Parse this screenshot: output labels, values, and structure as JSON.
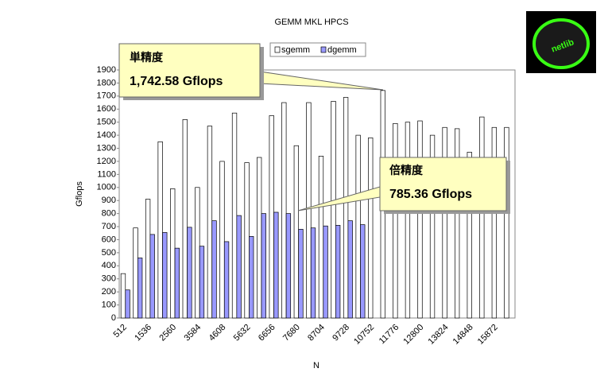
{
  "chart_data": {
    "type": "bar",
    "title": "GEMM MKL HPCS",
    "xlabel": "N",
    "ylabel": "Gflops",
    "categories": [
      "512",
      null,
      "1536",
      null,
      "2560",
      null,
      "3584",
      null,
      "4608",
      null,
      "5632",
      null,
      "6656",
      null,
      "7680",
      null,
      "8704",
      null,
      "9728",
      null,
      "10752",
      null,
      "11776",
      null,
      "12800",
      null,
      "13824",
      null,
      "14848",
      null,
      "15872",
      null
    ],
    "series": [
      {
        "name": "sgemm",
        "color": "#ffffff",
        "values": [
          340,
          690,
          910,
          1350,
          990,
          1520,
          1000,
          1470,
          1200,
          1570,
          1190,
          1230,
          1550,
          1650,
          1320,
          1650,
          1240,
          1660,
          1690,
          1400,
          1380,
          1742.58,
          1490,
          1500,
          1510,
          1400,
          1460,
          1450,
          1270,
          1540,
          1460,
          1460
        ]
      },
      {
        "name": "dgemm",
        "color": "#9999ff",
        "values": [
          215,
          460,
          640,
          655,
          535,
          695,
          550,
          745,
          585,
          785,
          625,
          800,
          810,
          800,
          680,
          690,
          705,
          710,
          745,
          715,
          null,
          null,
          null,
          null,
          null,
          null,
          null,
          null,
          null,
          null,
          null,
          null
        ]
      }
    ],
    "ylim": [
      0,
      1900
    ],
    "yticks": [
      0,
      100,
      200,
      300,
      400,
      500,
      600,
      700,
      800,
      900,
      1000,
      1100,
      1200,
      1300,
      1400,
      1500,
      1600,
      1700,
      1800,
      1900
    ],
    "grid": false,
    "annotations": [
      {
        "title": "単精度",
        "text": "1,742.58 Gflops"
      },
      {
        "title": "倍精度",
        "text": "785.36 Gflops"
      }
    ],
    "logo": "netlib"
  }
}
